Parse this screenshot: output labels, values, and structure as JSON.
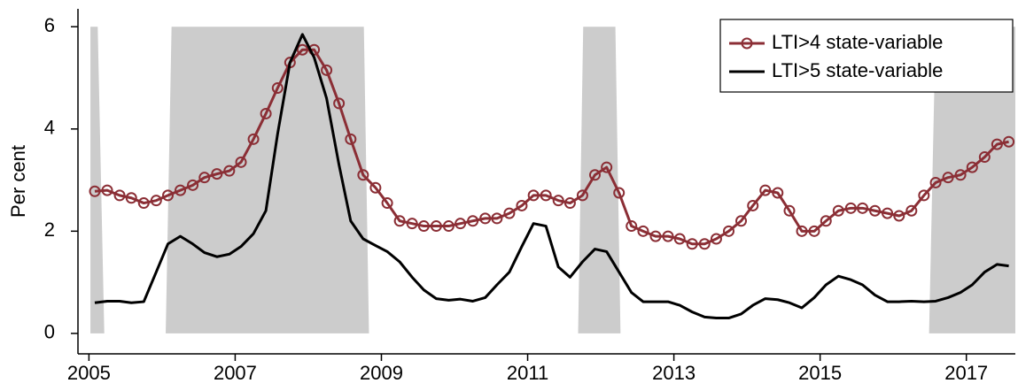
{
  "chart_data": {
    "type": "line",
    "ylabel": "Per cent",
    "xlim": [
      2004.85,
      2017.67
    ],
    "ylim": [
      -0.4,
      6.35
    ],
    "xticks": [
      2005,
      2007,
      2009,
      2011,
      2013,
      2015,
      2017
    ],
    "yticks": [
      0,
      2,
      4,
      6
    ],
    "grid": false,
    "legend": "top-right",
    "shade_color": "#cccccc",
    "shaded_areas": [
      {
        "x": [
          2005.02,
          2005.02,
          2005.12,
          2005.21
        ],
        "y": [
          0,
          6,
          6,
          0
        ]
      },
      {
        "x": [
          2006.05,
          2006.13,
          2008.76,
          2008.83
        ],
        "y": [
          0,
          6,
          6,
          0
        ]
      },
      {
        "x": [
          2011.69,
          2011.76,
          2012.2,
          2012.27
        ],
        "y": [
          0,
          6,
          6,
          0
        ]
      },
      {
        "x": [
          2016.49,
          2016.58,
          2017.67,
          2017.67
        ],
        "y": [
          0,
          6,
          6,
          0
        ]
      }
    ],
    "x": [
      2005.08,
      2005.25,
      2005.42,
      2005.58,
      2005.75,
      2005.92,
      2006.08,
      2006.25,
      2006.42,
      2006.58,
      2006.75,
      2006.92,
      2007.08,
      2007.25,
      2007.42,
      2007.58,
      2007.75,
      2007.92,
      2008.08,
      2008.25,
      2008.42,
      2008.58,
      2008.75,
      2008.92,
      2009.08,
      2009.25,
      2009.42,
      2009.58,
      2009.75,
      2009.92,
      2010.08,
      2010.25,
      2010.42,
      2010.58,
      2010.75,
      2010.92,
      2011.08,
      2011.25,
      2011.42,
      2011.58,
      2011.75,
      2011.92,
      2012.08,
      2012.25,
      2012.42,
      2012.58,
      2012.75,
      2012.92,
      2013.08,
      2013.25,
      2013.42,
      2013.58,
      2013.75,
      2013.92,
      2014.08,
      2014.25,
      2014.42,
      2014.58,
      2014.75,
      2014.92,
      2015.08,
      2015.25,
      2015.42,
      2015.58,
      2015.75,
      2015.92,
      2016.08,
      2016.25,
      2016.42,
      2016.58,
      2016.75,
      2016.92,
      2017.08,
      2017.25,
      2017.42,
      2017.58
    ],
    "series": [
      {
        "name": "LTI>4 state-variable",
        "color": "#8b2e35",
        "marker": "circle",
        "values": [
          2.78,
          2.8,
          2.7,
          2.65,
          2.55,
          2.6,
          2.7,
          2.8,
          2.9,
          3.05,
          3.12,
          3.18,
          3.35,
          3.8,
          4.3,
          4.8,
          5.3,
          5.55,
          5.55,
          5.15,
          4.5,
          3.8,
          3.1,
          2.85,
          2.55,
          2.2,
          2.15,
          2.1,
          2.1,
          2.1,
          2.15,
          2.2,
          2.25,
          2.25,
          2.35,
          2.5,
          2.7,
          2.7,
          2.6,
          2.55,
          2.7,
          3.1,
          3.25,
          2.75,
          2.1,
          2.0,
          1.9,
          1.9,
          1.85,
          1.75,
          1.75,
          1.85,
          2.0,
          2.2,
          2.5,
          2.8,
          2.75,
          2.4,
          2.0,
          2.0,
          2.2,
          2.4,
          2.45,
          2.45,
          2.4,
          2.35,
          2.3,
          2.4,
          2.7,
          2.95,
          3.05,
          3.1,
          3.25,
          3.45,
          3.7,
          3.75
        ]
      },
      {
        "name": "LTI>5 state-variable",
        "color": "#000000",
        "values": [
          0.6,
          0.63,
          0.63,
          0.6,
          0.62,
          1.2,
          1.75,
          1.9,
          1.75,
          1.58,
          1.5,
          1.55,
          1.7,
          1.95,
          2.4,
          3.9,
          5.3,
          5.85,
          5.4,
          4.6,
          3.3,
          2.2,
          1.85,
          1.72,
          1.6,
          1.4,
          1.1,
          0.85,
          0.68,
          0.65,
          0.67,
          0.63,
          0.7,
          0.95,
          1.2,
          1.7,
          2.15,
          2.1,
          1.3,
          1.1,
          1.4,
          1.65,
          1.6,
          1.2,
          0.8,
          0.62,
          0.62,
          0.62,
          0.55,
          0.42,
          0.32,
          0.3,
          0.3,
          0.38,
          0.55,
          0.68,
          0.66,
          0.6,
          0.5,
          0.7,
          0.95,
          1.12,
          1.05,
          0.95,
          0.75,
          0.62,
          0.62,
          0.63,
          0.62,
          0.63,
          0.7,
          0.8,
          0.95,
          1.2,
          1.35,
          1.32
        ]
      }
    ]
  }
}
